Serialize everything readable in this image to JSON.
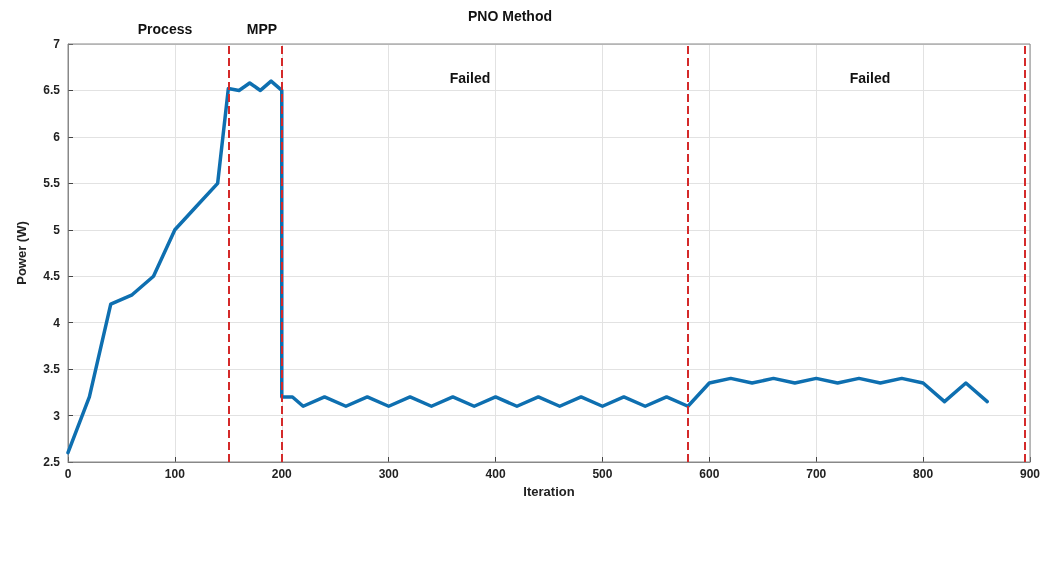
{
  "chart_data": {
    "type": "line",
    "xlabel": "Iteration",
    "ylabel": "Power (W)",
    "x": [
      0,
      20,
      40,
      60,
      80,
      100,
      120,
      140,
      150,
      160,
      170,
      180,
      190,
      200,
      200,
      210,
      220,
      240,
      260,
      280,
      300,
      320,
      340,
      360,
      380,
      400,
      420,
      440,
      460,
      480,
      500,
      520,
      540,
      560,
      580,
      600,
      620,
      640,
      660,
      680,
      700,
      720,
      740,
      760,
      780,
      800,
      820,
      840,
      860
    ],
    "series": [
      {
        "color": "#0e6fb0",
        "values": [
          2.6,
          3.2,
          4.2,
          4.3,
          4.5,
          5.0,
          5.25,
          5.5,
          6.52,
          6.5,
          6.58,
          6.5,
          6.6,
          6.5,
          3.2,
          3.2,
          3.1,
          3.2,
          3.1,
          3.2,
          3.1,
          3.2,
          3.1,
          3.2,
          3.1,
          3.2,
          3.1,
          3.2,
          3.1,
          3.2,
          3.1,
          3.2,
          3.1,
          3.2,
          3.1,
          3.35,
          3.4,
          3.35,
          3.4,
          3.35,
          3.4,
          3.35,
          3.4,
          3.35,
          3.4,
          3.35,
          3.15,
          3.35,
          3.15
        ]
      }
    ],
    "xlim": [
      0,
      900
    ],
    "xticks": [
      0,
      100,
      200,
      300,
      400,
      500,
      600,
      700,
      800,
      900
    ],
    "ylim": [
      2.5,
      7
    ],
    "yticks": [
      2.5,
      3,
      3.5,
      4,
      4.5,
      5,
      5.5,
      6,
      6.5,
      7
    ],
    "grid": true,
    "marker": "none",
    "line_style": "solid",
    "ref_lines": [
      {
        "axis": "x",
        "value": 150,
        "color": "#d42a2a",
        "line_style": "dashed"
      },
      {
        "axis": "x",
        "value": 200,
        "color": "#d42a2a",
        "line_style": "dashed"
      },
      {
        "axis": "x",
        "value": 580,
        "color": "#d42a2a",
        "line_style": "dashed"
      },
      {
        "axis": "x",
        "value": 895,
        "color": "#d42a2a",
        "line_style": "dashed"
      }
    ],
    "annotations": [
      "Process",
      "MPP",
      "PNO Method",
      "Failed",
      "Failed"
    ]
  }
}
